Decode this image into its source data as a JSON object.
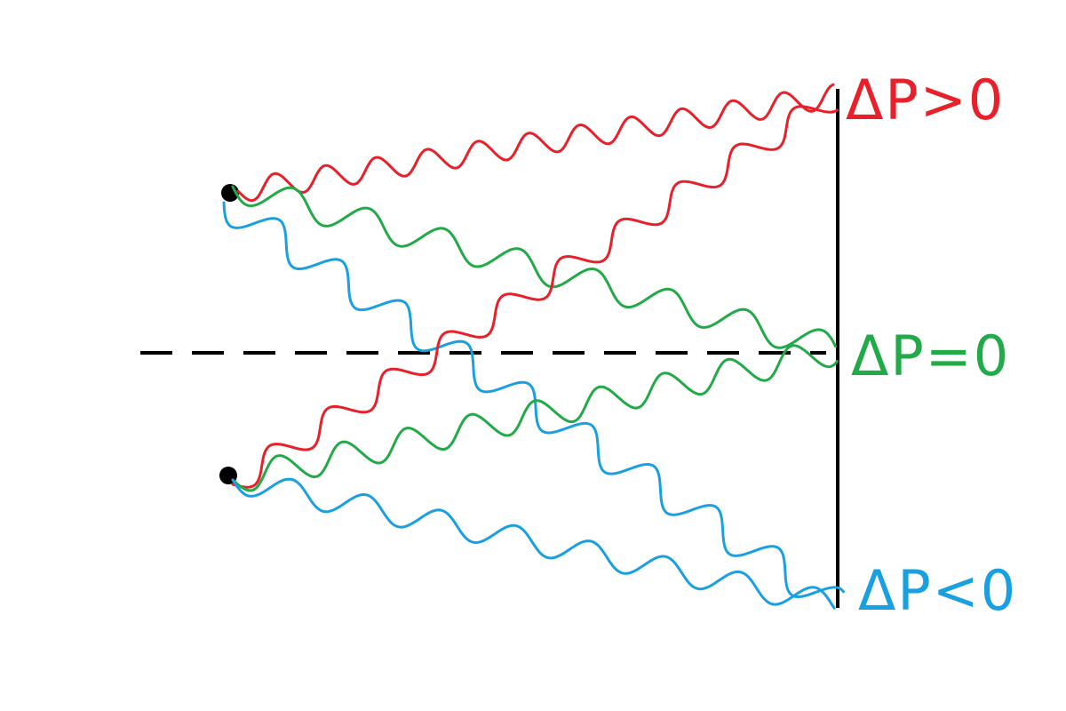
{
  "colors": {
    "red": "#e8202a",
    "green": "#22aa48",
    "blue": "#1aa0e0",
    "black": "#000000"
  },
  "labels": {
    "positive": "ΔP>0",
    "zero": "ΔP=0",
    "negative": "ΔP<0"
  }
}
